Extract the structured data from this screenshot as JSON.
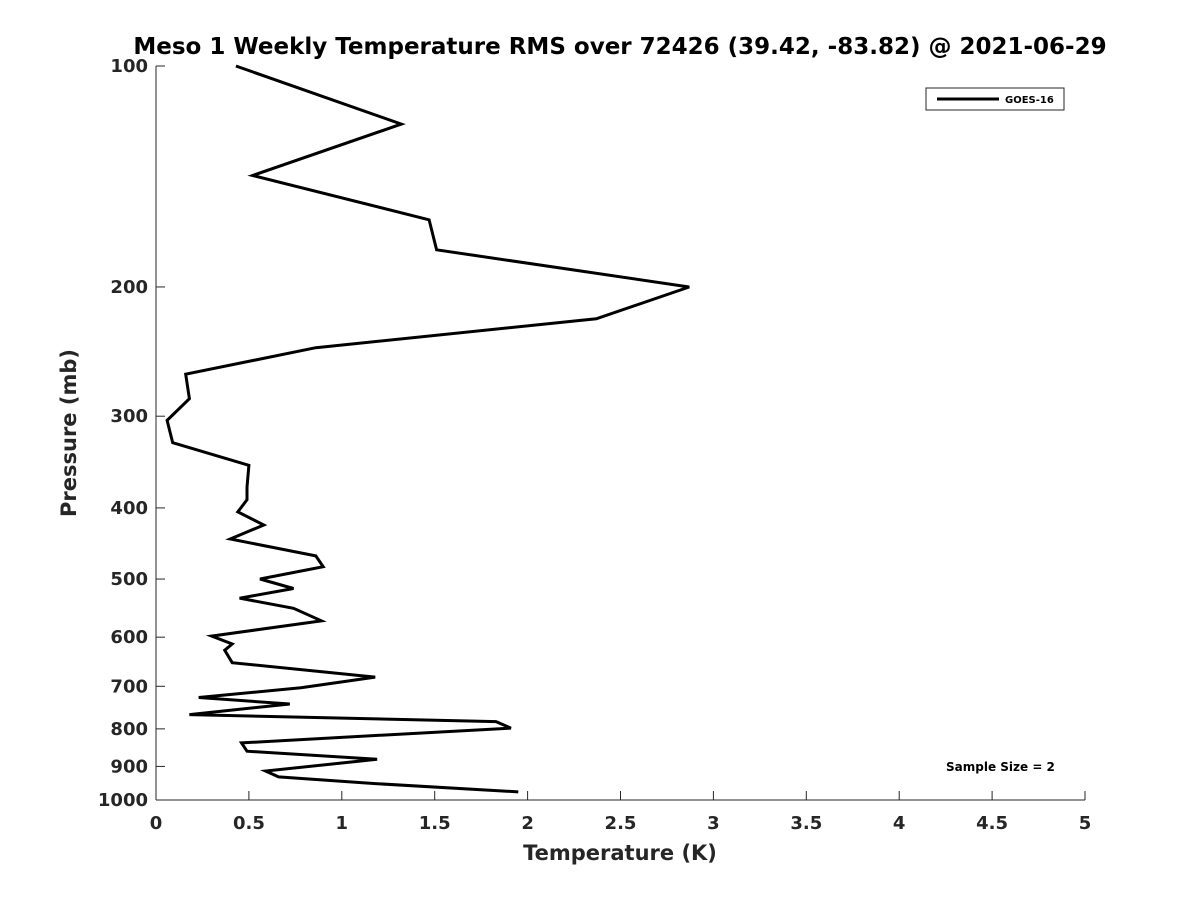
{
  "chart_data": {
    "type": "line",
    "title": "Meso 1 Weekly Temperature RMS over 72426 (39.42, -83.82) @ 2021-06-29",
    "xlabel": "Temperature (K)",
    "ylabel": "Pressure (mb)",
    "xlim": [
      0,
      5
    ],
    "ylim": [
      100,
      1000
    ],
    "yscale": "log",
    "y_reversed": true,
    "grid": false,
    "x_ticks": [
      0,
      0.5,
      1,
      1.5,
      2,
      2.5,
      3,
      3.5,
      4,
      4.5,
      5
    ],
    "x_tick_labels": [
      "0",
      "0.5",
      "1",
      "1.5",
      "2",
      "2.5",
      "3",
      "3.5",
      "4",
      "4.5",
      "5"
    ],
    "y_ticks": [
      100,
      200,
      300,
      400,
      500,
      600,
      700,
      800,
      900,
      1000
    ],
    "y_tick_labels": [
      "100",
      "200",
      "300",
      "400",
      "500",
      "600",
      "700",
      "800",
      "900",
      "1000"
    ],
    "legend_position": "top-right",
    "annotation": "Sample Size = 2",
    "series": [
      {
        "name": "GOES-16",
        "color": "#000000",
        "points": [
          [
            0.43,
            100
          ],
          [
            1.32,
            120
          ],
          [
            0.52,
            141
          ],
          [
            1.47,
            162
          ],
          [
            1.51,
            178
          ],
          [
            2.87,
            200
          ],
          [
            2.37,
            221
          ],
          [
            0.86,
            242
          ],
          [
            0.16,
            263
          ],
          [
            0.18,
            284
          ],
          [
            0.06,
            304
          ],
          [
            0.09,
            326
          ],
          [
            0.5,
            350
          ],
          [
            0.49,
            375
          ],
          [
            0.49,
            390
          ],
          [
            0.44,
            405
          ],
          [
            0.58,
            422
          ],
          [
            0.4,
            441
          ],
          [
            0.86,
            465
          ],
          [
            0.9,
            481
          ],
          [
            0.56,
            500
          ],
          [
            0.74,
            515
          ],
          [
            0.45,
            531
          ],
          [
            0.74,
            548
          ],
          [
            0.89,
            570
          ],
          [
            0.3,
            598
          ],
          [
            0.41,
            613
          ],
          [
            0.37,
            625
          ],
          [
            0.41,
            650
          ],
          [
            1.18,
            680
          ],
          [
            0.78,
            703
          ],
          [
            0.23,
            725
          ],
          [
            0.72,
            740
          ],
          [
            0.18,
            765
          ],
          [
            1.83,
            782
          ],
          [
            1.91,
            798
          ],
          [
            0.46,
            836
          ],
          [
            0.49,
            858
          ],
          [
            1.19,
            880
          ],
          [
            0.59,
            913
          ],
          [
            0.66,
            930
          ],
          [
            1.18,
            950
          ],
          [
            1.95,
            975
          ]
        ]
      }
    ]
  }
}
